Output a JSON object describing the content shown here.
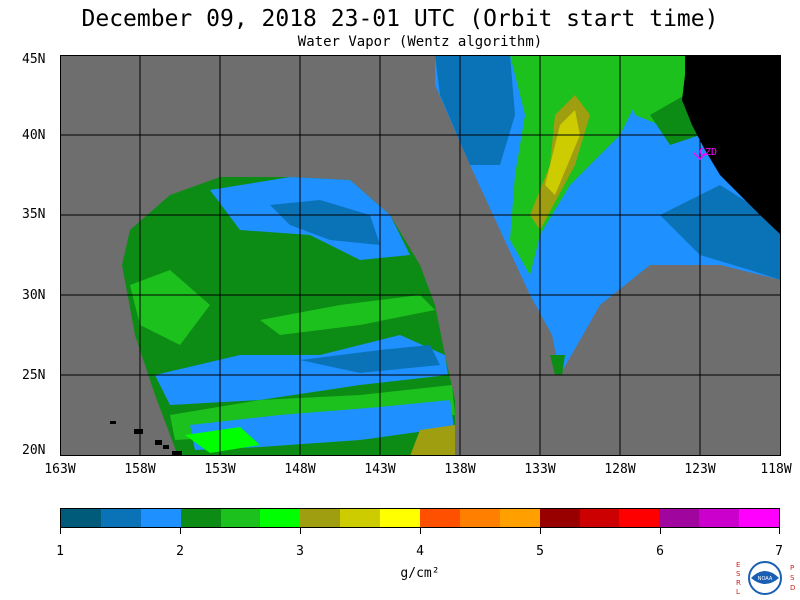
{
  "header": {
    "title": "December 09, 2018  23-01 UTC  (Orbit start time)",
    "subtitle": "Water Vapor (Wentz algorithm)"
  },
  "map": {
    "lat_labels": [
      "45N",
      "40N",
      "35N",
      "30N",
      "25N",
      "20N"
    ],
    "lon_labels": [
      "163W",
      "158W",
      "153W",
      "148W",
      "143W",
      "138W",
      "133W",
      "128W",
      "123W",
      "118W"
    ],
    "station_label": "CZD",
    "colors": {
      "no_data": "#6e6e6e",
      "land": "#000000",
      "grid": "#000000",
      "station": "#ff00ff"
    }
  },
  "colorbar": {
    "colors": [
      "#005a7a",
      "#0a73b8",
      "#1e90ff",
      "#0c8c14",
      "#1dc11d",
      "#00ff00",
      "#9e9e10",
      "#cccc00",
      "#ffff00",
      "#ff5000",
      "#ff8000",
      "#ffa000",
      "#980000",
      "#cc0000",
      "#ff0000",
      "#a0069e",
      "#cc00cc",
      "#ff00ff"
    ],
    "tick_labels": [
      "1",
      "2",
      "3",
      "4",
      "5",
      "6",
      "7"
    ],
    "units": "g/cm²"
  },
  "logo": {
    "left_letters": "ESRL",
    "right_letters": "PSD",
    "badge_text": "NOAA"
  }
}
